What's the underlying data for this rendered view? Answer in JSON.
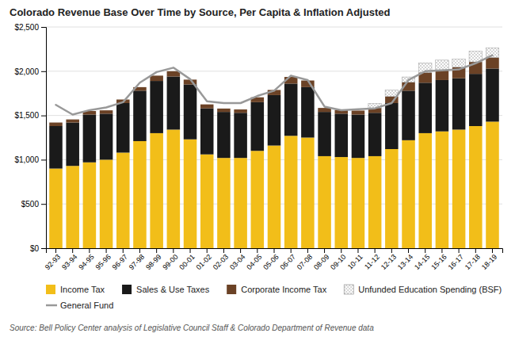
{
  "chart_data": {
    "type": "bar",
    "stacked": true,
    "title": "Colorado Revenue Base Over Time by Source, Per Capita & Inflation Adjusted",
    "annotations": [
      "Source: Bell Policy Center analysis of Legislative Council Staff & Colorado Department of Revenue data"
    ],
    "categories": [
      "92-93",
      "93-94",
      "94-95",
      "95-96",
      "96-97",
      "97-98",
      "98-99",
      "99-00",
      "00-01",
      "01-02",
      "02-03",
      "03-04",
      "04-05",
      "05-06",
      "06-07",
      "07-08",
      "08-09",
      "09-10",
      "10-11",
      "11-12",
      "12-13",
      "13-14",
      "14-15",
      "15-16",
      "16-17",
      "17-18",
      "18-19"
    ],
    "series": [
      {
        "name": "Income Tax",
        "color": "#F2BE19",
        "values": [
          900,
          930,
          970,
          1000,
          1080,
          1210,
          1300,
          1340,
          1230,
          1060,
          1020,
          1020,
          1100,
          1160,
          1270,
          1250,
          1040,
          1030,
          1020,
          1040,
          1120,
          1220,
          1300,
          1320,
          1340,
          1380,
          1430
        ]
      },
      {
        "name": "Sales & Use Taxes",
        "color": "#1a1a1a",
        "values": [
          480,
          490,
          540,
          520,
          560,
          570,
          590,
          600,
          620,
          520,
          520,
          510,
          550,
          570,
          590,
          570,
          500,
          490,
          490,
          490,
          520,
          560,
          570,
          580,
          580,
          590,
          600
        ]
      },
      {
        "name": "Corporate Income Tax",
        "color": "#6B4226",
        "values": [
          40,
          35,
          40,
          38,
          40,
          40,
          60,
          60,
          55,
          45,
          38,
          38,
          55,
          58,
          75,
          75,
          45,
          42,
          45,
          55,
          75,
          95,
          115,
          115,
          125,
          135,
          125
        ]
      },
      {
        "name": "Unfunded Education Spending (BSF)",
        "color": "#888888",
        "values": [
          0,
          0,
          0,
          0,
          0,
          0,
          0,
          0,
          0,
          0,
          0,
          0,
          0,
          0,
          0,
          0,
          0,
          0,
          0,
          50,
          70,
          60,
          110,
          110,
          90,
          120,
          110
        ]
      },
      {
        "name": "General Fund",
        "type": "line",
        "color": "#999999",
        "values": [
          1620,
          1510,
          1560,
          1590,
          1650,
          1870,
          1990,
          2040,
          1910,
          1660,
          1640,
          1640,
          1720,
          1780,
          1950,
          1900,
          1600,
          1560,
          1570,
          1580,
          1640,
          1900,
          2000,
          2010,
          2020,
          2090,
          2180
        ]
      }
    ],
    "ylim": [
      0,
      2500
    ],
    "yticks": [
      {
        "value": 0,
        "label": "$0"
      },
      {
        "value": 500,
        "label": "$500"
      },
      {
        "value": 1000,
        "label": "$1,000"
      },
      {
        "value": 1500,
        "label": "$1,500"
      },
      {
        "value": 2000,
        "label": "$2,000"
      },
      {
        "value": 2500,
        "label": "$2,500"
      }
    ],
    "grid": true,
    "legend": "bottom"
  }
}
